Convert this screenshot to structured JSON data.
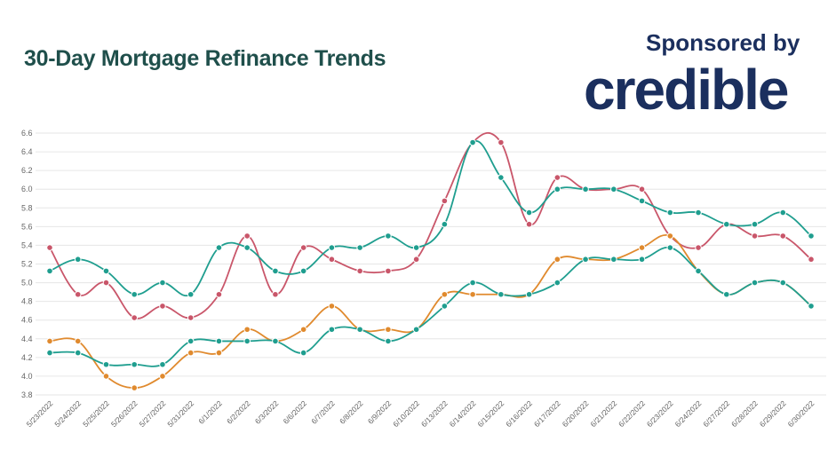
{
  "header": {
    "title": "30-Day Mortgage Refinance Trends",
    "sponsor_text": "Sponsored by",
    "logo_text": "credible"
  },
  "chart_data": {
    "type": "line",
    "title": "30-Day Mortgage Refinance Trends",
    "xlabel": "",
    "ylabel": "",
    "ylim": [
      3.8,
      6.6
    ],
    "yticks": [
      "3.8",
      "4.0",
      "4.2",
      "4.4",
      "4.6",
      "4.8",
      "5.0",
      "5.2",
      "5.4",
      "5.6",
      "5.8",
      "6.0",
      "6.2",
      "6.4",
      "6.6"
    ],
    "grid": true,
    "categories": [
      "5/23/2022",
      "5/24/2022",
      "5/25/2022",
      "5/26/2022",
      "5/27/2022",
      "5/31/2022",
      "6/1/2022",
      "6/2/2022",
      "6/3/2022",
      "6/6/2022",
      "6/7/2022",
      "6/8/2022",
      "6/9/2022",
      "6/10/2022",
      "6/13/2022",
      "6/14/2022",
      "6/15/2022",
      "6/16/2022",
      "6/17/2022",
      "6/20/2022",
      "6/21/2022",
      "6/22/2022",
      "6/23/2022",
      "6/24/2022",
      "6/27/2022",
      "6/28/2022",
      "6/29/2022",
      "6/30/2022"
    ],
    "series": [
      {
        "color": "#c9566a",
        "values": [
          5.375,
          4.875,
          5.0,
          4.625,
          4.75,
          4.625,
          4.875,
          5.5,
          4.875,
          5.375,
          5.25,
          5.125,
          5.125,
          5.25,
          5.875,
          6.5,
          6.5,
          5.625,
          6.125,
          6.0,
          6.0,
          6.0,
          5.5,
          5.375,
          5.625,
          5.5,
          5.5,
          5.25
        ]
      },
      {
        "color": "#1f9e8f",
        "values": [
          5.125,
          5.25,
          5.125,
          4.875,
          5.0,
          4.875,
          5.375,
          5.375,
          5.125,
          5.125,
          5.375,
          5.375,
          5.5,
          5.375,
          5.625,
          6.5,
          6.125,
          5.75,
          6.0,
          6.0,
          6.0,
          5.875,
          5.75,
          5.75,
          5.625,
          5.625,
          5.75,
          5.5
        ]
      },
      {
        "color": "#e08a2e",
        "values": [
          4.375,
          4.375,
          4.0,
          3.875,
          4.0,
          4.25,
          4.25,
          4.5,
          4.375,
          4.5,
          4.75,
          4.5,
          4.5,
          4.5,
          4.875,
          4.875,
          4.875,
          4.875,
          5.25,
          5.25,
          5.25,
          5.375,
          5.5,
          5.125,
          4.875,
          5.0,
          5.0,
          4.75
        ]
      },
      {
        "color": "#1f9e8f",
        "values": [
          4.25,
          4.25,
          4.125,
          4.125,
          4.125,
          4.375,
          4.375,
          4.375,
          4.375,
          4.25,
          4.5,
          4.5,
          4.375,
          4.5,
          4.75,
          5.0,
          4.875,
          4.875,
          5.0,
          5.25,
          5.25,
          5.25,
          5.375,
          5.125,
          4.875,
          5.0,
          5.0,
          4.75
        ]
      }
    ]
  }
}
